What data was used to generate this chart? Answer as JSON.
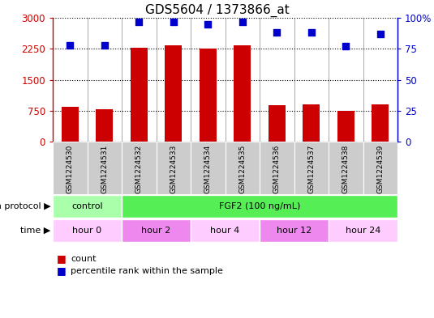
{
  "title": "GDS5604 / 1373866_at",
  "samples": [
    "GSM1224530",
    "GSM1224531",
    "GSM1224532",
    "GSM1224533",
    "GSM1224534",
    "GSM1224535",
    "GSM1224536",
    "GSM1224537",
    "GSM1224538",
    "GSM1224539"
  ],
  "counts": [
    850,
    780,
    2270,
    2330,
    2250,
    2330,
    880,
    900,
    750,
    900
  ],
  "percentiles": [
    78,
    78,
    97,
    97,
    95,
    97,
    88,
    88,
    77,
    87
  ],
  "bar_color": "#cc0000",
  "dot_color": "#0000cc",
  "bar_width": 0.5,
  "ylim_left": [
    0,
    3000
  ],
  "ylim_right": [
    0,
    100
  ],
  "yticks_left": [
    0,
    750,
    1500,
    2250,
    3000
  ],
  "ytick_labels_left": [
    "0",
    "750",
    "1500",
    "2250",
    "3000"
  ],
  "yticks_right": [
    0,
    25,
    50,
    75,
    100
  ],
  "ytick_labels_right": [
    "0",
    "25",
    "50",
    "75",
    "100%"
  ],
  "growth_protocol_label": "growth protocol",
  "growth_groups": [
    {
      "name": "control",
      "start": 0,
      "end": 2,
      "color": "#aaffaa"
    },
    {
      "name": "FGF2 (100 ng/mL)",
      "start": 2,
      "end": 10,
      "color": "#55ee55"
    }
  ],
  "time_label": "time",
  "time_groups": [
    {
      "name": "hour 0",
      "start": 0,
      "end": 2,
      "color": "#ffccff"
    },
    {
      "name": "hour 2",
      "start": 2,
      "end": 4,
      "color": "#ee88ee"
    },
    {
      "name": "hour 4",
      "start": 4,
      "end": 6,
      "color": "#ffccff"
    },
    {
      "name": "hour 12",
      "start": 6,
      "end": 8,
      "color": "#ee88ee"
    },
    {
      "name": "hour 24",
      "start": 8,
      "end": 10,
      "color": "#ffccff"
    }
  ],
  "legend_count_label": "count",
  "legend_pct_label": "percentile rank within the sample",
  "bg_color": "#ffffff",
  "sample_area_color": "#cccccc",
  "grid_line_color": "#000000"
}
